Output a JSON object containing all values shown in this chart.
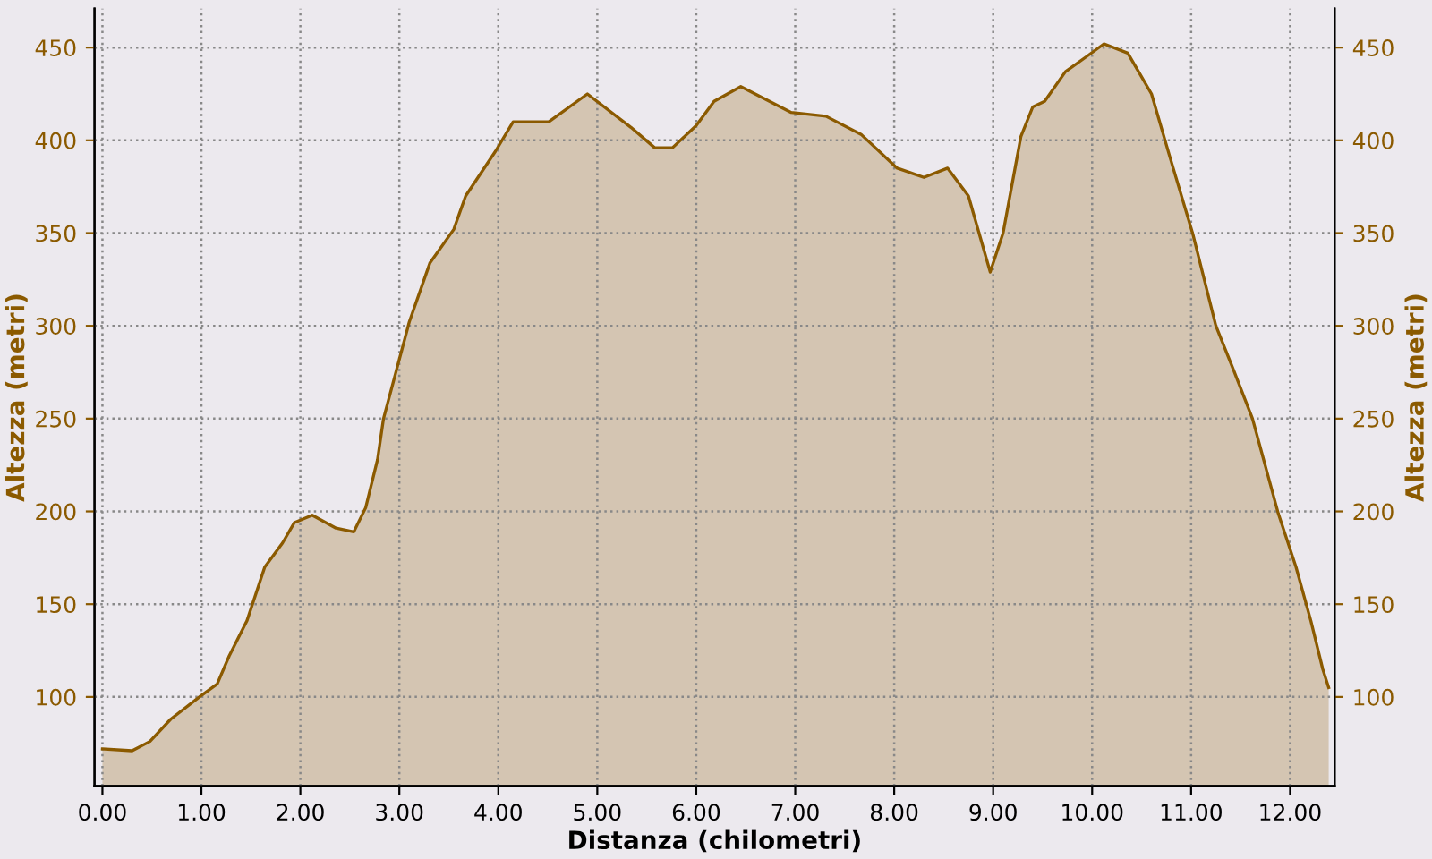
{
  "chart_data": {
    "type": "area",
    "xlabel": "Distanza (chilometri)",
    "ylabel": "Altezza (metri)",
    "y2label": "Altezza (metri)",
    "series": [
      {
        "color": "#8b5a00",
        "x": [
          0,
          0.3,
          0.48,
          0.69,
          0.98,
          1.16,
          1.28,
          1.46,
          1.64,
          1.82,
          1.94,
          2.12,
          2.36,
          2.54,
          2.66,
          2.78,
          2.84,
          3.1,
          3.31,
          3.55,
          3.67,
          3.97,
          4.15,
          4.51,
          4.9,
          5.34,
          5.58,
          5.76,
          6.0,
          6.18,
          6.45,
          6.96,
          7.31,
          7.67,
          8.03,
          8.3,
          8.54,
          8.75,
          8.97,
          9.1,
          9.28,
          9.4,
          9.52,
          9.73,
          9.94,
          10.12,
          10.36,
          10.6,
          10.78,
          11.02,
          11.25,
          11.43,
          11.62,
          11.88,
          12.06,
          12.21,
          12.33,
          12.39
        ],
        "values": [
          72,
          71,
          76,
          88,
          100,
          107,
          122,
          141,
          170,
          183,
          194,
          198,
          191,
          189,
          202,
          228,
          250,
          302,
          334,
          352,
          370,
          394,
          410,
          410,
          425,
          407,
          396,
          396,
          408,
          421,
          429,
          415,
          413,
          403,
          385,
          380,
          385,
          370,
          329,
          350,
          402,
          418,
          421,
          437,
          445,
          452,
          447,
          425,
          392,
          349,
          300,
          276,
          250,
          199,
          170,
          141,
          115,
          105
        ]
      }
    ],
    "xlim": [
      -0.08,
      12.45
    ],
    "ylim": [
      52,
      471
    ],
    "y2lim": [
      52,
      471
    ],
    "xticks": [
      {
        "value": 0,
        "label": "0.00"
      },
      {
        "value": 1,
        "label": "1.00"
      },
      {
        "value": 2,
        "label": "2.00"
      },
      {
        "value": 3,
        "label": "3.00"
      },
      {
        "value": 4,
        "label": "4.00"
      },
      {
        "value": 5,
        "label": "5.00"
      },
      {
        "value": 6,
        "label": "6.00"
      },
      {
        "value": 7,
        "label": "7.00"
      },
      {
        "value": 8,
        "label": "8.00"
      },
      {
        "value": 9,
        "label": "9.00"
      },
      {
        "value": 10,
        "label": "10.00"
      },
      {
        "value": 11,
        "label": "11.00"
      },
      {
        "value": 12,
        "label": "12.00"
      }
    ],
    "yticks": [
      100,
      150,
      200,
      250,
      300,
      350,
      400,
      450
    ],
    "y2ticks": [
      100,
      150,
      200,
      250,
      300,
      350,
      400,
      450
    ],
    "grid": true,
    "legend": false
  }
}
